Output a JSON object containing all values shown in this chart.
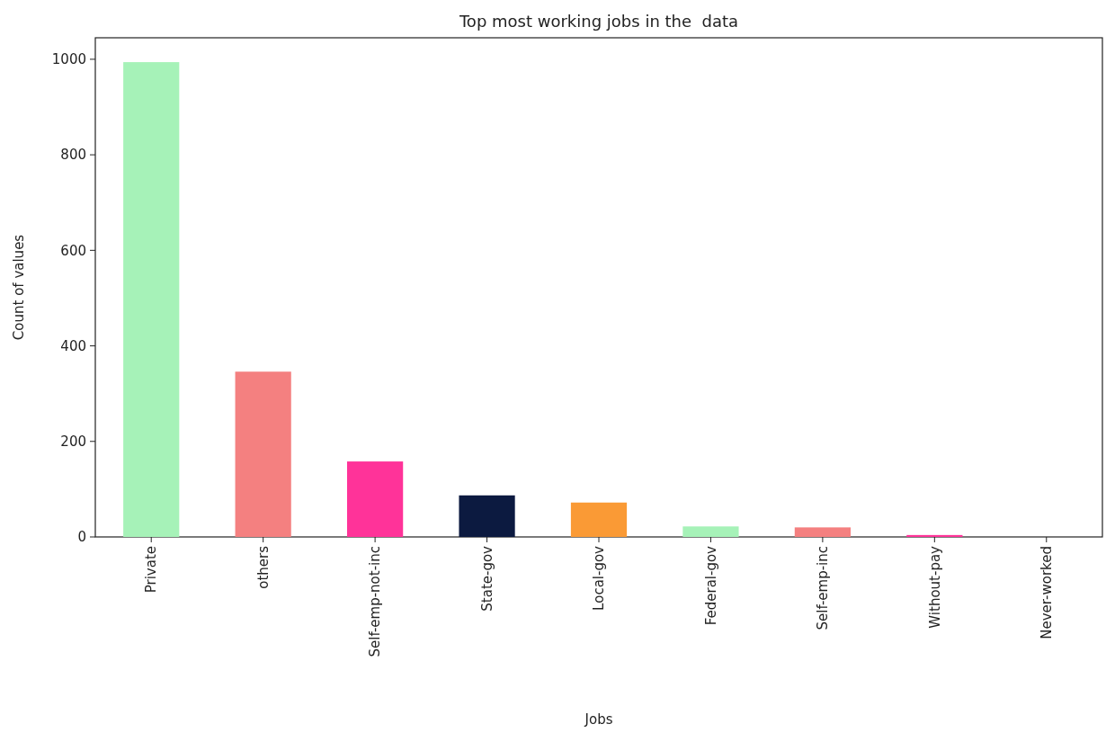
{
  "chart_data": {
    "type": "bar",
    "title": "Top most working jobs in the  data",
    "xlabel": "Jobs",
    "ylabel": "Count of values",
    "categories": [
      "Private",
      "others",
      "Self-emp-not-inc",
      "State-gov",
      "Local-gov",
      "Federal-gov",
      "Self-emp-inc",
      "Without-pay",
      "Never-worked"
    ],
    "values": [
      994,
      346,
      158,
      87,
      72,
      22,
      20,
      4,
      0
    ],
    "colors": [
      "#a6f2b8",
      "#f48080",
      "#ff3399",
      "#0c1a40",
      "#fa9a35",
      "#a6f2b8",
      "#f48080",
      "#ff3399",
      "#0c1a40"
    ],
    "ylim": [
      0,
      1045
    ],
    "yticks": [
      0,
      200,
      400,
      600,
      800,
      1000
    ],
    "grid": false
  }
}
